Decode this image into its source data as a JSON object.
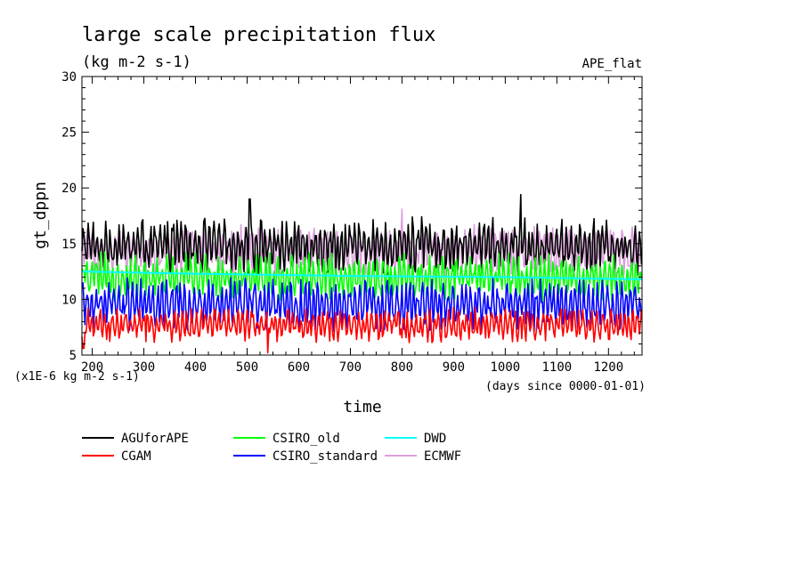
{
  "chart_data": {
    "type": "line",
    "title": "large scale precipitation flux",
    "subtitle": "(kg m-2 s-1)",
    "experiment_label": "APE_flat",
    "xlabel": "time",
    "ylabel": "gt_dppn",
    "y_scale_note": "(x1E-6 kg m-2 s-1)",
    "x_units_note": "(days since 0000-01-01)",
    "xlim": [
      180,
      1265
    ],
    "ylim": [
      5,
      30
    ],
    "xticks": [
      "200",
      "300",
      "400",
      "500",
      "600",
      "700",
      "800",
      "900",
      "1000",
      "1100",
      "1200"
    ],
    "yticks": [
      "5",
      "10",
      "15",
      "20",
      "25",
      "30"
    ],
    "grid": false,
    "legend_position": "bottom",
    "series": [
      {
        "name": "AGUforAPE",
        "color": "#000000",
        "mean": 14.8,
        "amplitude": 1.6,
        "peaks": [
          [
            505,
            19.0
          ],
          [
            1030,
            19.4
          ],
          [
            820,
            17.4
          ]
        ]
      },
      {
        "name": "CGAM",
        "color": "#ff0000",
        "mean": 7.7,
        "amplitude": 1.0,
        "peaks": [
          [
            183,
            5.6
          ],
          [
            540,
            5.2
          ]
        ]
      },
      {
        "name": "CSIRO_old",
        "color": "#00ff00",
        "mean": 12.0,
        "amplitude": 1.4,
        "peaks": []
      },
      {
        "name": "CSIRO_standard",
        "color": "#0000ff",
        "mean": 9.5,
        "amplitude": 1.5,
        "peaks": []
      },
      {
        "name": "DWD",
        "color": "#00ffff",
        "x": [
          180,
          400,
          700,
          1000,
          1265
        ],
        "y": [
          12.5,
          12.3,
          12.1,
          12.0,
          11.8
        ]
      },
      {
        "name": "ECMWF",
        "color": "#dda0dd",
        "mean": 14.3,
        "amplitude": 1.5,
        "peaks": [
          [
            800,
            18.1
          ]
        ]
      }
    ]
  }
}
